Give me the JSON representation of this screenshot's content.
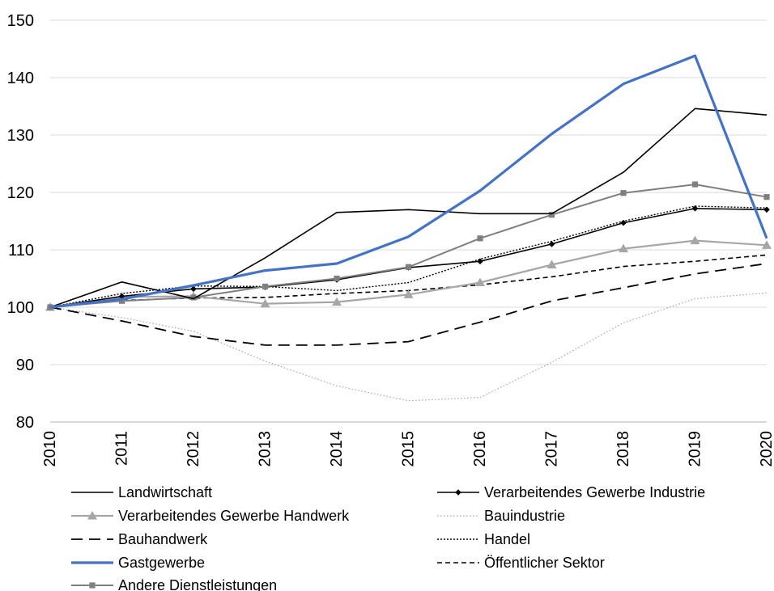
{
  "chart_data": {
    "type": "line",
    "title": "",
    "xlabel": "",
    "ylabel": "",
    "x": [
      "2010",
      "2011",
      "2012",
      "2013",
      "2014",
      "2015",
      "2016",
      "2017",
      "2018",
      "2019",
      "2020"
    ],
    "ylim": [
      80,
      150
    ],
    "yticks": [
      "80",
      "90",
      "100",
      "110",
      "120",
      "130",
      "140",
      "150"
    ],
    "grid": true,
    "legend_position": "bottom",
    "series": [
      {
        "name": "Landwirtschaft",
        "color": "#000000",
        "dash": "solid",
        "marker": "none",
        "values": [
          100,
          104.4,
          101.5,
          108.6,
          116.5,
          117.0,
          116.3,
          116.3,
          123.5,
          134.6,
          133.5
        ]
      },
      {
        "name": "Verarbeitendes Gewerbe Industrie",
        "color": "#000000",
        "dash": "solid",
        "marker": "diamond",
        "values": [
          100,
          101.9,
          103.2,
          103.5,
          104.8,
          106.9,
          108.0,
          111.0,
          114.7,
          117.2,
          117.0
        ]
      },
      {
        "name": "Verarbeitendes Gewerbe Handwerk",
        "color": "#a6a6a6",
        "dash": "solid",
        "marker": "triangle",
        "values": [
          100,
          101.8,
          101.9,
          100.6,
          100.9,
          102.2,
          104.3,
          107.4,
          110.2,
          111.6,
          110.8
        ]
      },
      {
        "name": "Bauindustrie",
        "color": "#a6a6a6",
        "dash": "dot-fine",
        "marker": "none",
        "values": [
          100,
          98.2,
          95.8,
          90.6,
          86.3,
          83.7,
          84.3,
          90.4,
          97.3,
          101.5,
          102.5
        ]
      },
      {
        "name": "Bauhandwerk",
        "color": "#000000",
        "dash": "long-dash",
        "marker": "none",
        "values": [
          100,
          97.6,
          94.9,
          93.4,
          93.4,
          94.0,
          97.4,
          101.1,
          103.4,
          105.8,
          107.6
        ]
      },
      {
        "name": "Handel",
        "color": "#000000",
        "dash": "dot",
        "marker": "none",
        "values": [
          100,
          102.4,
          103.7,
          103.6,
          102.9,
          104.3,
          108.4,
          111.5,
          115.0,
          117.6,
          117.3
        ]
      },
      {
        "name": "Gastgewerbe",
        "color": "#4472c4",
        "dash": "solid",
        "marker": "none",
        "values": [
          100,
          101.4,
          103.8,
          106.4,
          107.6,
          112.3,
          120.3,
          130.2,
          138.9,
          143.8,
          112.0
        ]
      },
      {
        "name": "Öffentlicher Sektor",
        "color": "#000000",
        "dash": "short-dash",
        "marker": "none",
        "values": [
          100,
          101.2,
          101.6,
          101.7,
          102.4,
          102.9,
          103.9,
          105.3,
          107.1,
          108.0,
          109.1
        ]
      },
      {
        "name": "Andere Dienstleistungen",
        "color": "#7f7f7f",
        "dash": "solid",
        "marker": "square",
        "values": [
          100,
          101.1,
          101.7,
          103.6,
          105.0,
          107.0,
          112.0,
          116.1,
          119.9,
          121.4,
          119.2
        ]
      }
    ]
  }
}
